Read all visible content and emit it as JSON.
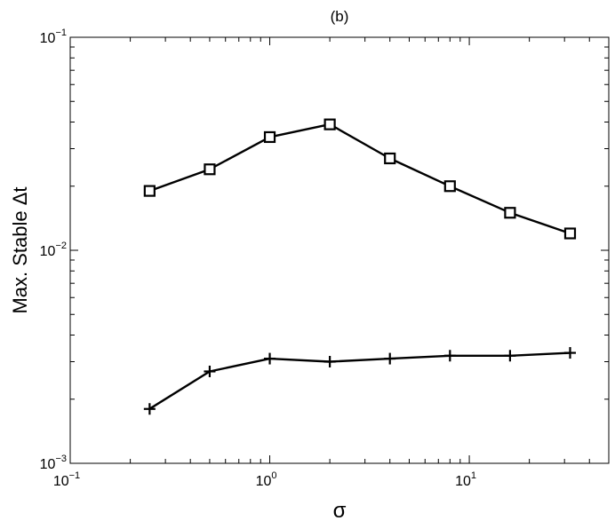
{
  "chart_data": {
    "type": "line",
    "title": "(b)",
    "xlabel": "σ",
    "ylabel": "Max. Stable Δt",
    "xscale": "log",
    "yscale": "log",
    "xlim": [
      0.1,
      50
    ],
    "ylim": [
      0.001,
      0.1
    ],
    "x_ticks": [
      {
        "value": 0.1,
        "base": "10",
        "exp": "−1"
      },
      {
        "value": 1,
        "base": "10",
        "exp": "0"
      },
      {
        "value": 10,
        "base": "10",
        "exp": "1"
      }
    ],
    "y_ticks": [
      {
        "value": 0.001,
        "base": "10",
        "exp": "−3"
      },
      {
        "value": 0.01,
        "base": "10",
        "exp": "−2"
      },
      {
        "value": 0.1,
        "base": "10",
        "exp": "−1"
      }
    ],
    "grid": false,
    "legend": "none",
    "line_color": "#000000",
    "series": [
      {
        "marker": "square",
        "x": [
          0.25,
          0.5,
          1,
          2,
          4,
          8,
          16,
          32
        ],
        "y": [
          0.019,
          0.024,
          0.034,
          0.039,
          0.027,
          0.02,
          0.015,
          0.012
        ]
      },
      {
        "marker": "plus",
        "x": [
          0.25,
          0.5,
          1,
          2,
          4,
          8,
          16,
          32
        ],
        "y": [
          0.0018,
          0.0027,
          0.0031,
          0.003,
          0.0031,
          0.0032,
          0.0032,
          0.0033
        ]
      }
    ]
  }
}
